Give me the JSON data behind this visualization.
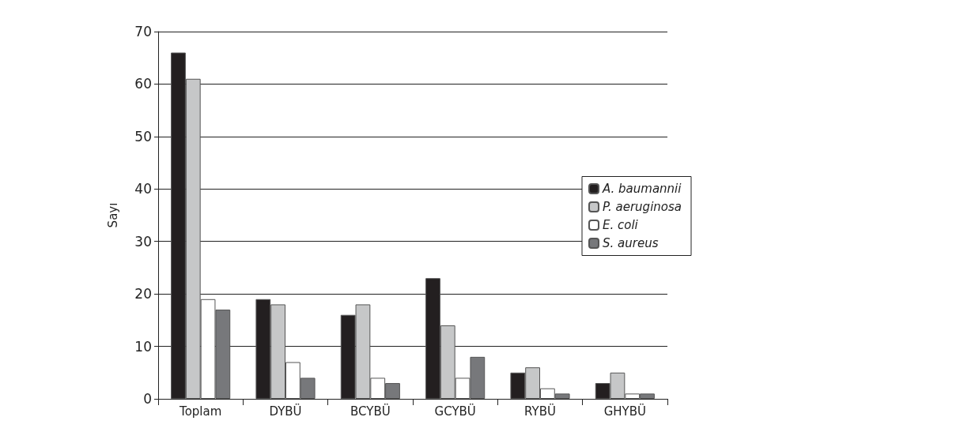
{
  "chart_data": {
    "type": "bar",
    "ylabel": "Sayı",
    "categories": [
      "Toplam",
      "DYBÜ",
      "BCYBÜ",
      "GCYBÜ",
      "RYBÜ",
      "GHYBÜ"
    ],
    "series": [
      {
        "name": "A. baumannii",
        "color": "#231f20",
        "values": [
          66,
          19,
          16,
          23,
          5,
          3
        ]
      },
      {
        "name": "P. aeruginosa",
        "color": "#c6c7c8",
        "values": [
          61,
          18,
          18,
          14,
          6,
          5
        ]
      },
      {
        "name": "E. coli",
        "color": "#ffffff",
        "values": [
          19,
          7,
          4,
          4,
          2,
          1
        ]
      },
      {
        "name": "S. aureus",
        "color": "#77787b",
        "values": [
          17,
          4,
          3,
          8,
          1,
          1
        ]
      }
    ],
    "ylim": [
      0,
      70
    ],
    "yticks": [
      0,
      10,
      20,
      30,
      40,
      50,
      60,
      70
    ],
    "grid": "y",
    "legend": "right"
  }
}
